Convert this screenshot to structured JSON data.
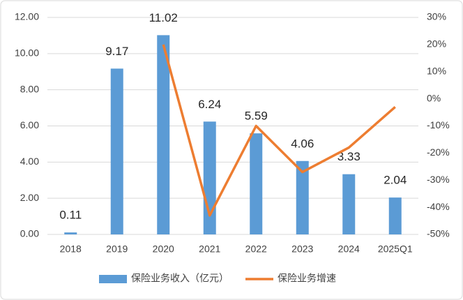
{
  "chart_data": {
    "type": "bar",
    "categories": [
      "2018",
      "2019",
      "2020",
      "2021",
      "2022",
      "2023",
      "2024",
      "2025Q1"
    ],
    "series": [
      {
        "name": "保险业务收入（亿元）",
        "type": "bar",
        "color": "#5b9bd5",
        "values": [
          0.11,
          9.17,
          11.02,
          6.24,
          5.59,
          4.06,
          3.33,
          2.04
        ]
      },
      {
        "name": "保险业务增速",
        "type": "line",
        "axis": "y2",
        "color": "#ed7d31",
        "values": [
          null,
          null,
          20,
          -43,
          -10,
          -27,
          -18,
          -3
        ]
      }
    ],
    "ylim": [
      0,
      12
    ],
    "yticks": [
      {
        "value": 0,
        "label": "0.00"
      },
      {
        "value": 2,
        "label": "2.00"
      },
      {
        "value": 4,
        "label": "4.00"
      },
      {
        "value": 6,
        "label": "6.00"
      },
      {
        "value": 8,
        "label": "8.00"
      },
      {
        "value": 10,
        "label": "10.00"
      },
      {
        "value": 12,
        "label": "12.00"
      }
    ],
    "y2lim": [
      -50,
      30
    ],
    "y2ticks": [
      {
        "value": -50,
        "label": "-50%"
      },
      {
        "value": -40,
        "label": "-40%"
      },
      {
        "value": -30,
        "label": "-30%"
      },
      {
        "value": -20,
        "label": "-20%"
      },
      {
        "value": -10,
        "label": "-10%"
      },
      {
        "value": 0,
        "label": "0%"
      },
      {
        "value": 10,
        "label": "10%"
      },
      {
        "value": 20,
        "label": "20%"
      },
      {
        "value": 30,
        "label": "30%"
      }
    ],
    "grid": true,
    "legend": "bottom"
  }
}
